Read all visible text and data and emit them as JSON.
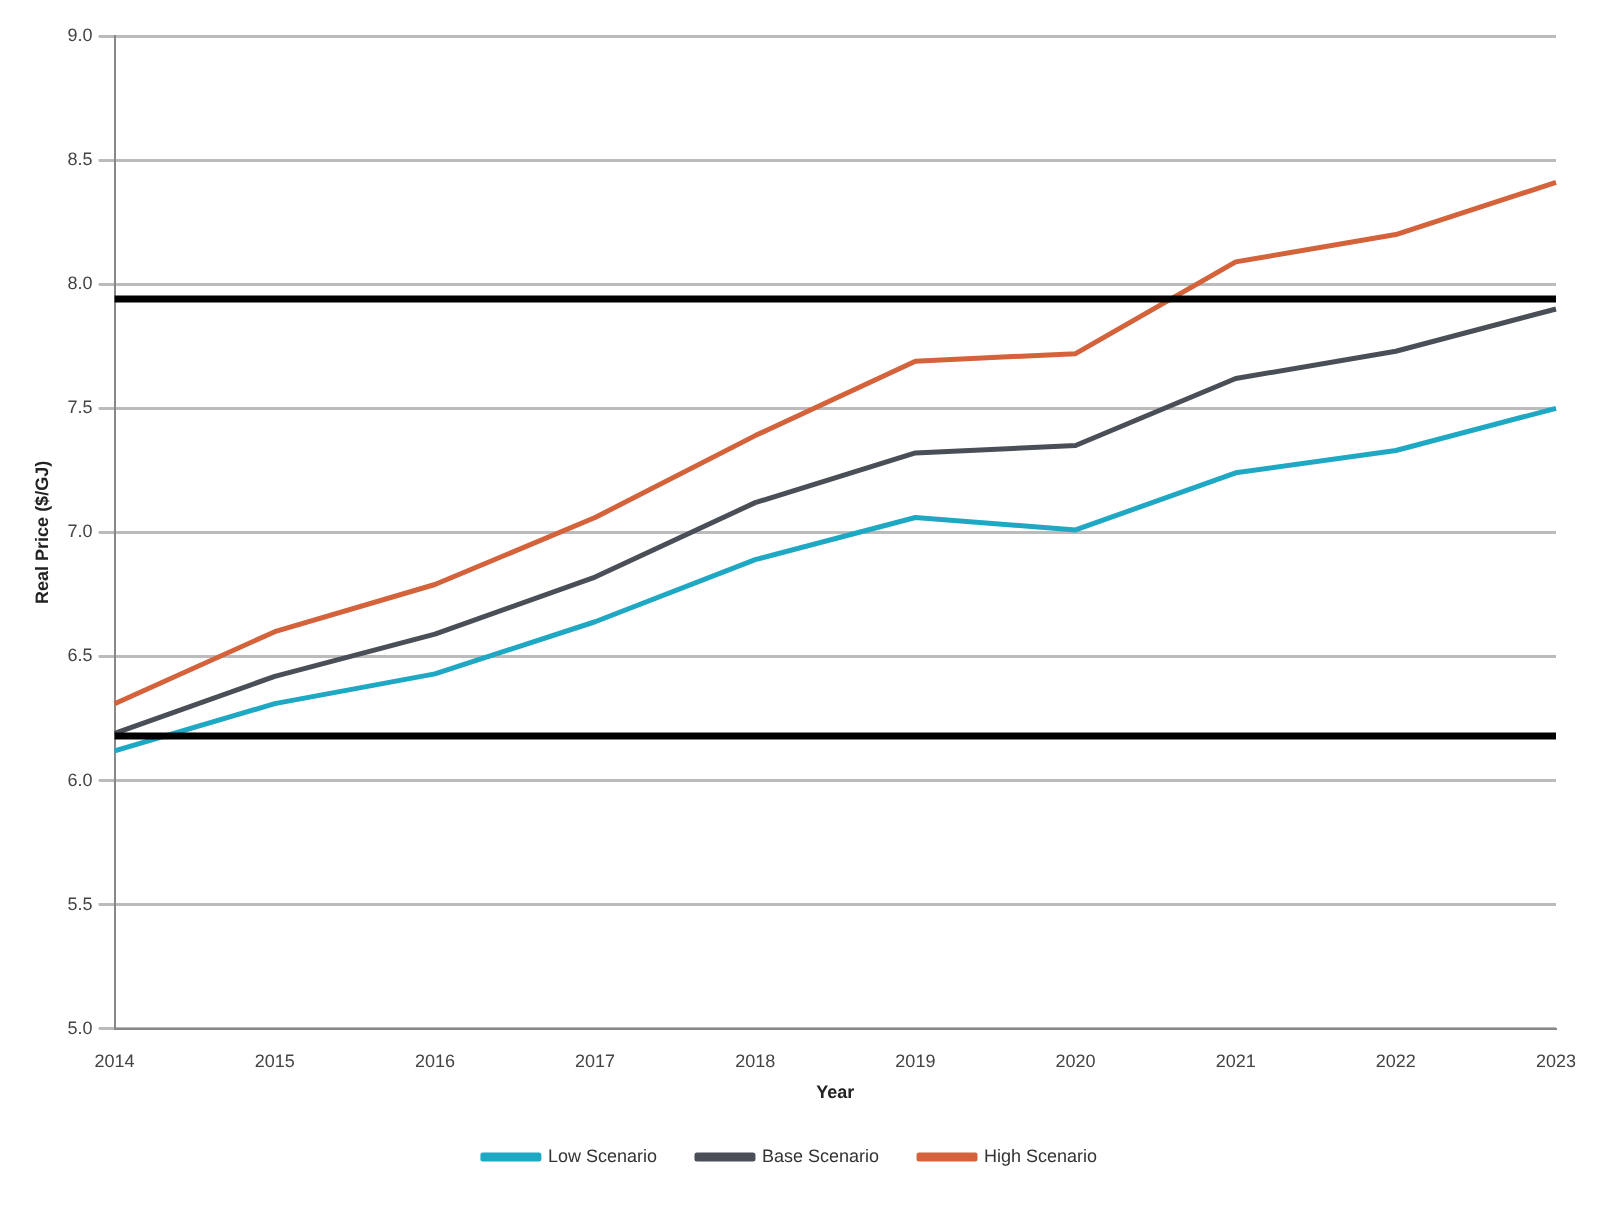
{
  "chart_data": {
    "type": "line",
    "xlabel": "Year",
    "ylabel": "Real Price ($/GJ)",
    "categories": [
      "2014",
      "2015",
      "2016",
      "2017",
      "2018",
      "2019",
      "2020",
      "2021",
      "2022",
      "2023"
    ],
    "series": [
      {
        "name": "Low Scenario",
        "color": "#1fa8c4",
        "values": [
          6.12,
          6.31,
          6.43,
          6.64,
          6.89,
          7.06,
          7.01,
          7.24,
          7.33,
          7.5
        ]
      },
      {
        "name": "Base Scenario",
        "color": "#4a4f57",
        "values": [
          6.19,
          6.42,
          6.59,
          6.82,
          7.12,
          7.32,
          7.35,
          7.62,
          7.73,
          7.9
        ]
      },
      {
        "name": "High Scenario",
        "color": "#d4623a",
        "values": [
          6.31,
          6.6,
          6.79,
          7.06,
          7.39,
          7.69,
          7.72,
          8.09,
          8.2,
          8.41
        ]
      }
    ],
    "ylim": [
      5.0,
      9.0
    ],
    "yticks": [
      {
        "value": 5,
        "label": "5.0"
      },
      5.5,
      {
        "value": 6,
        "label": "6.0"
      },
      6.5,
      {
        "value": 7,
        "label": "7.0"
      },
      7.5,
      {
        "value": 8,
        "label": "8.0"
      },
      8.5,
      {
        "value": 9,
        "label": "9.0"
      }
    ],
    "ref_lines": [
      {
        "axis": "y",
        "value": 7.94,
        "color": "#000000"
      },
      {
        "axis": "y",
        "value": 6.18,
        "color": "#000000"
      }
    ],
    "grid": "y",
    "legend": "bottom",
    "marker": "none",
    "line_style": "solid"
  }
}
